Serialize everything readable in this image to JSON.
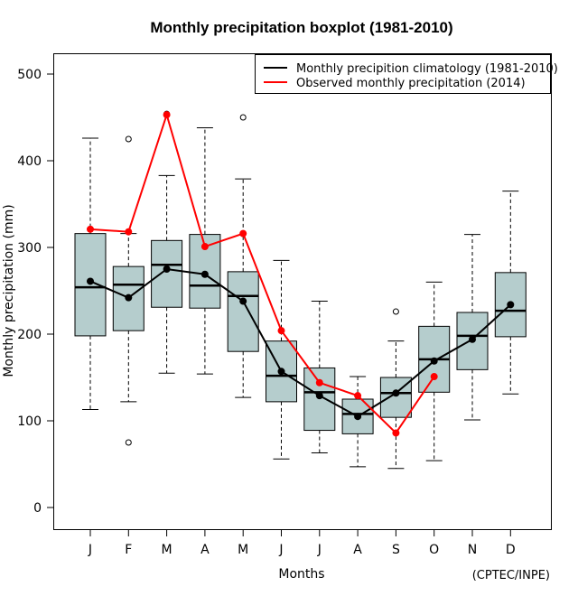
{
  "chart_data": {
    "type": "boxplot",
    "title": "Monthly precipitation boxplot (1981-2010)",
    "xlabel": "Months",
    "ylabel": "Monthly precipitation (mm)",
    "credit": "(CPTEC/INPE)",
    "ylim": [
      -25,
      525
    ],
    "yticks": [
      0,
      100,
      200,
      300,
      400,
      500
    ],
    "ytick_labels": [
      "0",
      "100",
      "200",
      "300",
      "400",
      "500"
    ],
    "categories": [
      "J",
      "F",
      "M",
      "A",
      "M",
      "J",
      "J",
      "A",
      "S",
      "O",
      "N",
      "D"
    ],
    "box_fill": "#b5cdcd",
    "boxes": [
      {
        "whisker_low": 113,
        "q1": 198,
        "median": 254,
        "q3": 316,
        "whisker_high": 426,
        "outliers": []
      },
      {
        "whisker_low": 122,
        "q1": 204,
        "median": 257,
        "q3": 278,
        "whisker_high": 316,
        "outliers": [
          425,
          75
        ]
      },
      {
        "whisker_low": 155,
        "q1": 231,
        "median": 280,
        "q3": 308,
        "whisker_high": 383,
        "outliers": [
          454
        ]
      },
      {
        "whisker_low": 154,
        "q1": 230,
        "median": 256,
        "q3": 315,
        "whisker_high": 438,
        "outliers": []
      },
      {
        "whisker_low": 127,
        "q1": 180,
        "median": 244,
        "q3": 272,
        "whisker_high": 379,
        "outliers": [
          450
        ]
      },
      {
        "whisker_low": 56,
        "q1": 122,
        "median": 152,
        "q3": 192,
        "whisker_high": 285,
        "outliers": []
      },
      {
        "whisker_low": 63,
        "q1": 89,
        "median": 133,
        "q3": 161,
        "whisker_high": 238,
        "outliers": []
      },
      {
        "whisker_low": 47,
        "q1": 85,
        "median": 108,
        "q3": 125,
        "whisker_high": 151,
        "outliers": []
      },
      {
        "whisker_low": 45,
        "q1": 104,
        "median": 132,
        "q3": 150,
        "whisker_high": 192,
        "outliers": [
          226
        ]
      },
      {
        "whisker_low": 54,
        "q1": 133,
        "median": 171,
        "q3": 209,
        "whisker_high": 260,
        "outliers": []
      },
      {
        "whisker_low": 101,
        "q1": 159,
        "median": 198,
        "q3": 225,
        "whisker_high": 315,
        "outliers": []
      },
      {
        "whisker_low": 131,
        "q1": 197,
        "median": 227,
        "q3": 271,
        "whisker_high": 365,
        "outliers": []
      }
    ],
    "series": [
      {
        "name": "Monthly precipition climatology (1981-2010)",
        "color": "#000000",
        "values": [
          261,
          242,
          275,
          269,
          238,
          157,
          129,
          105,
          132,
          169,
          194,
          234
        ]
      },
      {
        "name": "Observed monthly precipitation (2014)",
        "color": "#ff0000",
        "values": [
          321,
          318,
          453,
          301,
          316,
          204,
          144,
          129,
          86,
          151,
          null,
          null
        ]
      }
    ],
    "legend_position": "top-right",
    "grid": false
  }
}
